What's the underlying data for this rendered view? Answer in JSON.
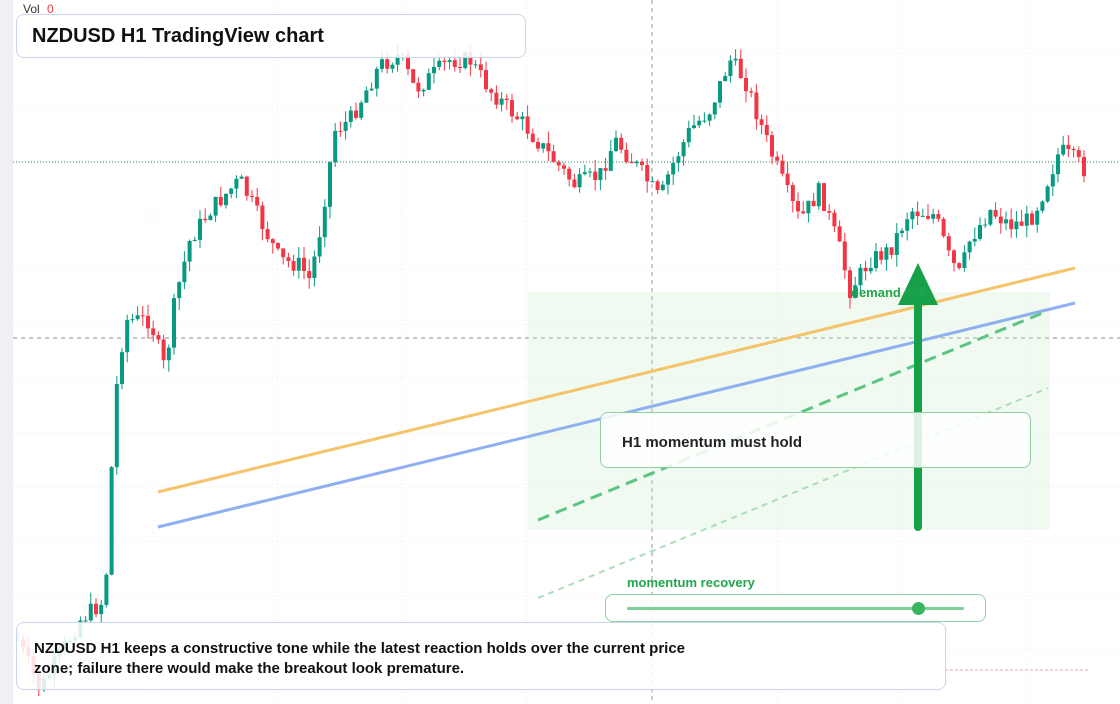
{
  "header": {
    "volume_label": "Vol",
    "volume_value": 0,
    "title": "NZDUSD H1 TradingView chart"
  },
  "annotations": {
    "zone_label": "demand side",
    "callout": "H1 momentum must hold",
    "slider_label": "momentum recovery"
  },
  "caption": "NZDUSD H1 keeps a constructive tone while the latest reaction holds over the current price zone; failure there would make the breakout look premature."
}
